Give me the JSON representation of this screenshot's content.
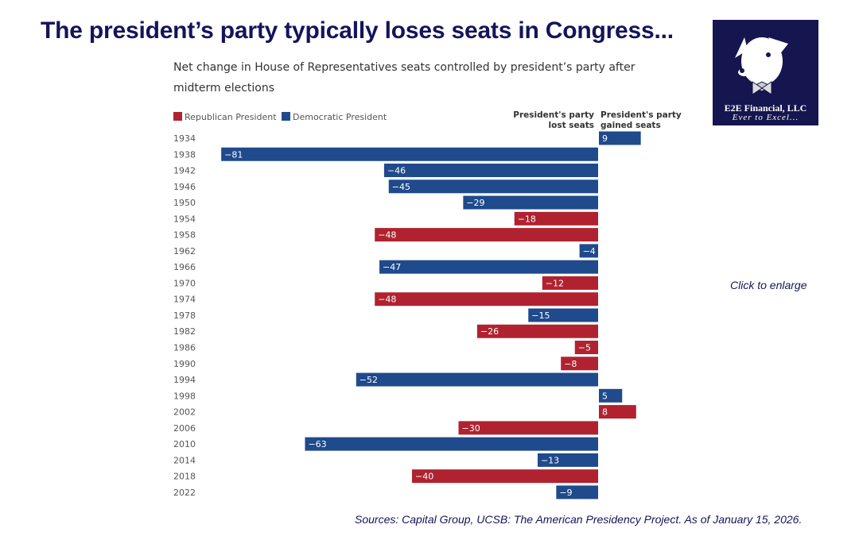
{
  "header": {
    "title": "The president’s party typically loses seats in Congress..."
  },
  "logo": {
    "name": "E2E Financial, LLC",
    "tagline": "Ever to Excel..."
  },
  "enlarge_link": "Click to enlarge",
  "source": "Sources: Capital Group, UCSB: The American Presidency Project. As of January 15, 2026.",
  "colors": {
    "republican": "#B0222F",
    "democratic": "#1F4A8C",
    "title": "#14145a"
  },
  "chart_data": {
    "type": "bar",
    "orientation": "horizontal",
    "title": "Net change in House of Representatives seats controlled by president’s party after midterm elections",
    "legend": [
      "Republican President",
      "Democratic President"
    ],
    "legend_position": "top-left",
    "annotations": [
      "President's party lost seats",
      "President's party gained seats"
    ],
    "categories": [
      "1934",
      "1938",
      "1942",
      "1946",
      "1950",
      "1954",
      "1958",
      "1962",
      "1966",
      "1970",
      "1974",
      "1978",
      "1982",
      "1986",
      "1990",
      "1994",
      "1998",
      "2002",
      "2006",
      "2010",
      "2014",
      "2018",
      "2022"
    ],
    "values": [
      9,
      -81,
      -46,
      -45,
      -29,
      -18,
      -48,
      -4,
      -47,
      -12,
      -48,
      -15,
      -26,
      -5,
      -8,
      -52,
      5,
      8,
      -30,
      -63,
      -13,
      -40,
      -9
    ],
    "party": [
      "D",
      "D",
      "D",
      "D",
      "D",
      "R",
      "R",
      "D",
      "D",
      "R",
      "R",
      "D",
      "R",
      "R",
      "R",
      "D",
      "D",
      "R",
      "R",
      "D",
      "D",
      "R",
      "D"
    ],
    "grid": false
  }
}
